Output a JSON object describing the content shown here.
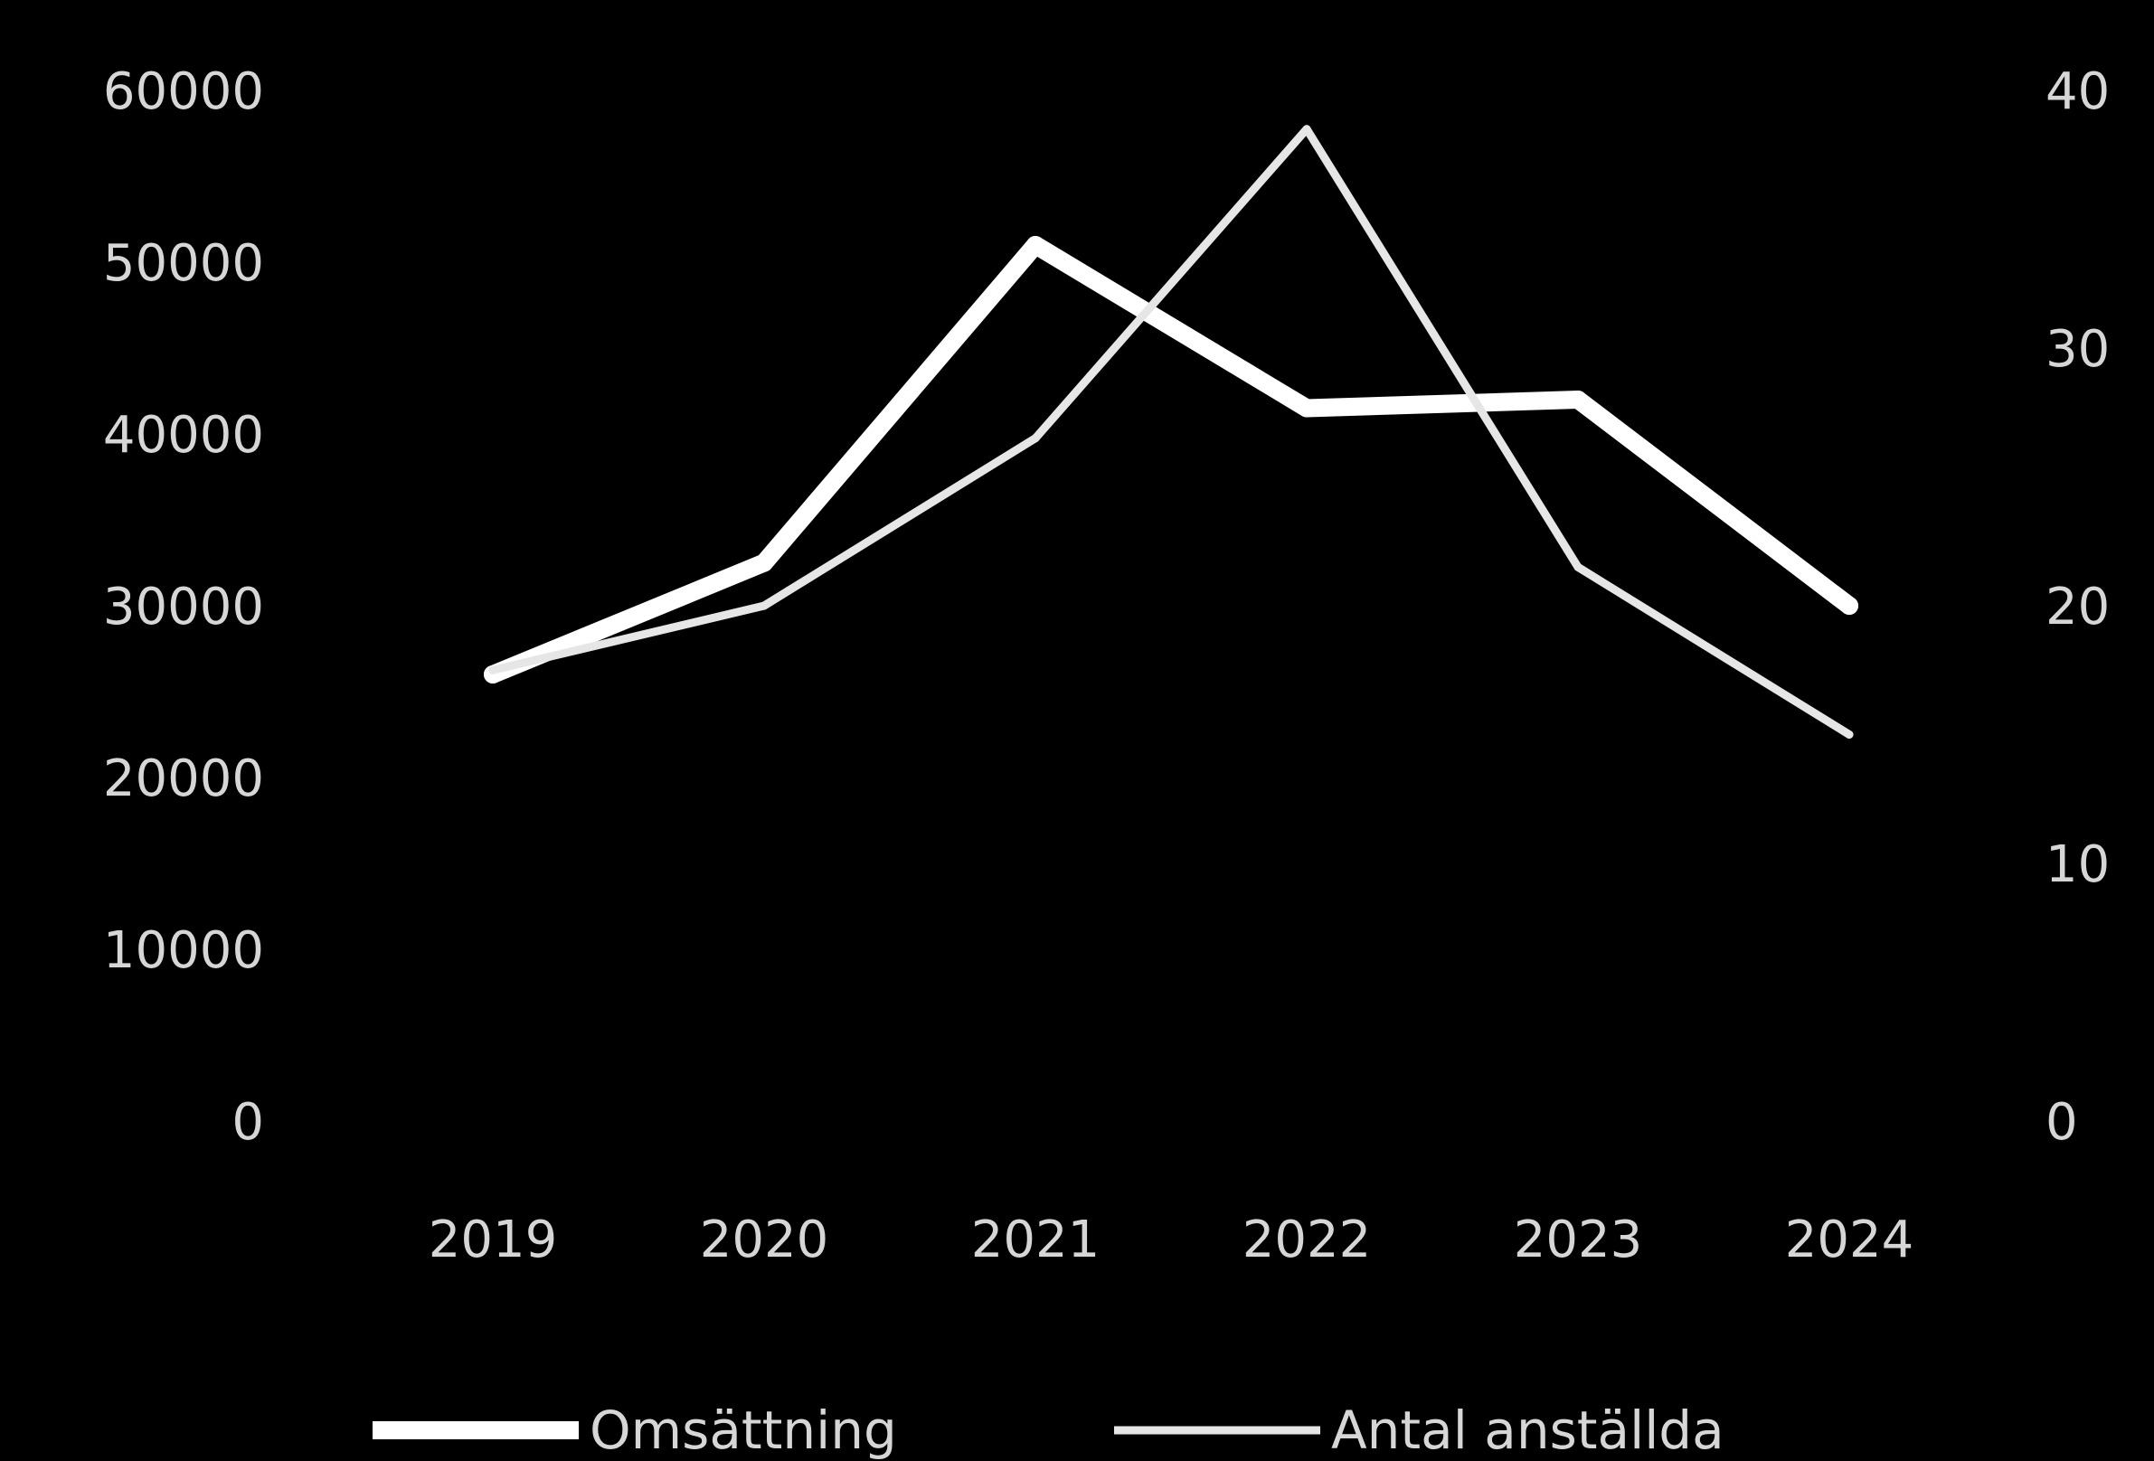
{
  "chart_data": {
    "type": "line",
    "categories": [
      "2019",
      "2020",
      "2021",
      "2022",
      "2023",
      "2024"
    ],
    "series": [
      {
        "name": "Omsättning",
        "axis": "left",
        "values": [
          26000,
          32500,
          51000,
          41500,
          42000,
          30000
        ],
        "color": "#ffffff"
      },
      {
        "name": "Antal anställda",
        "axis": "right",
        "values": [
          17.5,
          20,
          26.5,
          38.5,
          21.5,
          15
        ],
        "color": "#e6e6e6"
      }
    ],
    "y_left": {
      "min": 0,
      "max": 60000,
      "ticks": [
        "0",
        "10000",
        "20000",
        "30000",
        "40000",
        "50000",
        "60000"
      ]
    },
    "y_right": {
      "min": 0,
      "max": 40,
      "ticks": [
        "0",
        "10",
        "20",
        "30",
        "40"
      ]
    },
    "legend_position": "bottom",
    "grid": false
  }
}
